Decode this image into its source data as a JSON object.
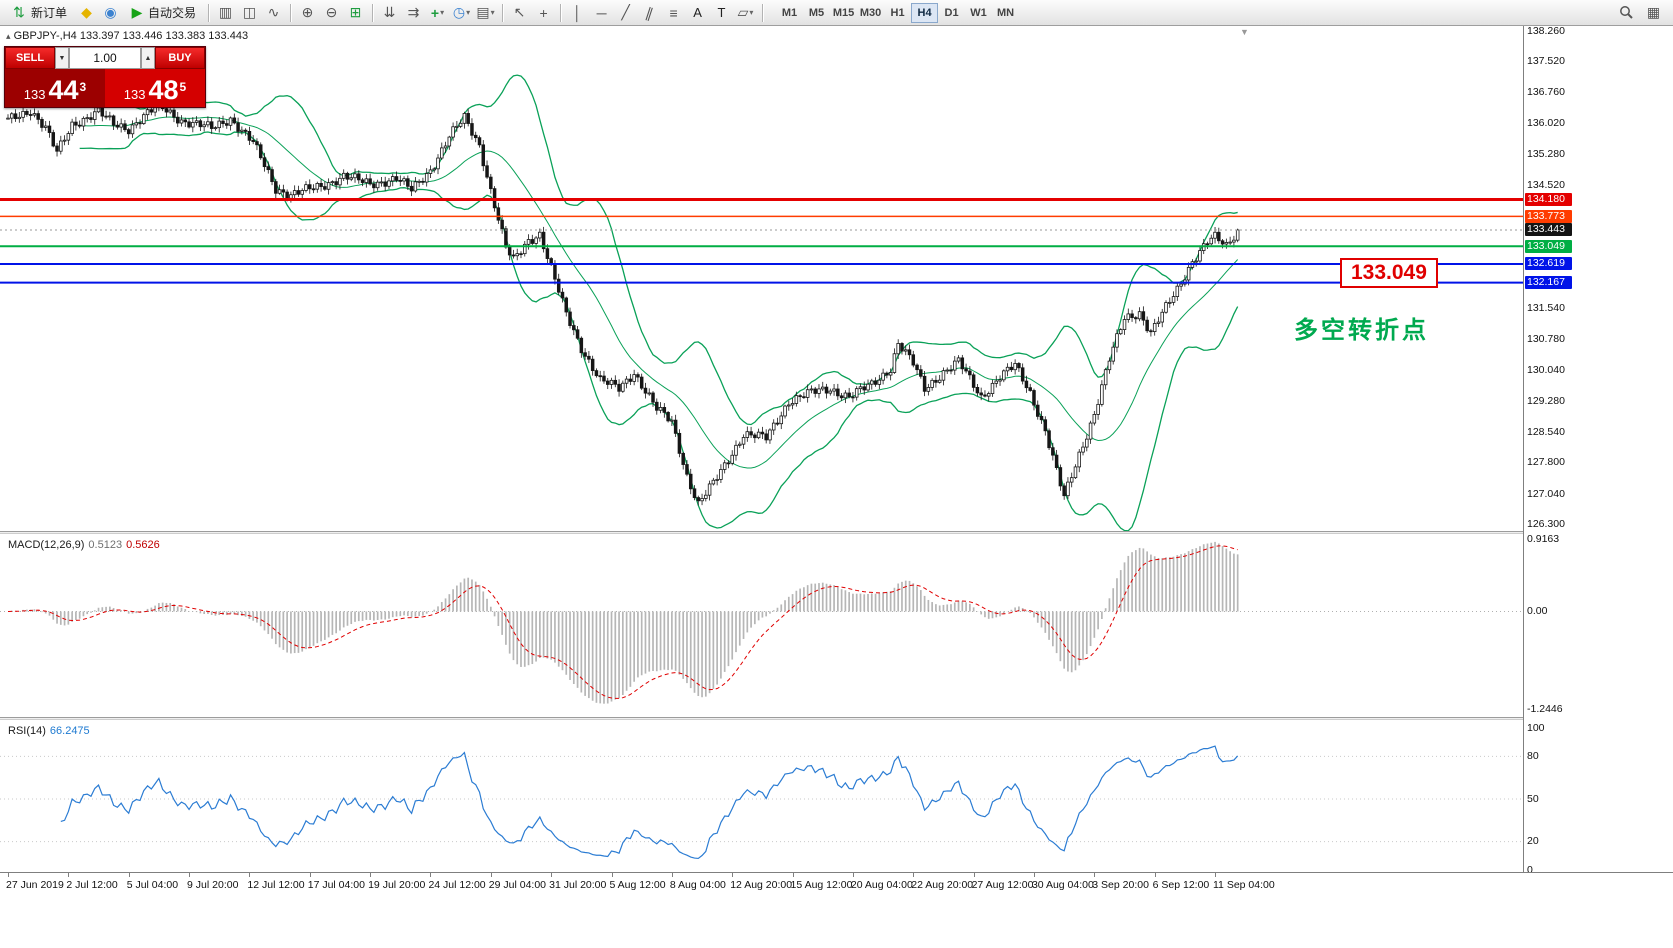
{
  "toolbar": {
    "new_order_label": "新订单",
    "auto_trading_label": "自动交易",
    "timeframes": [
      "M1",
      "M5",
      "M15",
      "M30",
      "H1",
      "H4",
      "D1",
      "W1",
      "MN"
    ],
    "active_timeframe": "H4"
  },
  "symbol_line": {
    "symbol": "GBPJPY-,H4",
    "ohlc": "133.397 133.446 133.383 133.443"
  },
  "trade_panel": {
    "sell_label": "SELL",
    "buy_label": "BUY",
    "volume": "1.00",
    "sell_small": "133",
    "sell_big": "44",
    "sell_sup": "3",
    "buy_small": "133",
    "buy_big": "48",
    "buy_sup": "5"
  },
  "annotations": {
    "price_label": "133.049",
    "turning_point": "多空转折点"
  },
  "price_axis": {
    "labels": [
      "138.260",
      "137.520",
      "136.760",
      "136.020",
      "135.280",
      "134.520",
      "131.540",
      "130.780",
      "130.040",
      "129.280",
      "128.540",
      "127.800",
      "127.040",
      "126.300"
    ],
    "highlighted": [
      {
        "text": "134.180",
        "bg": "#e40000"
      },
      {
        "text": "133.773",
        "bg": "#ff3c00"
      },
      {
        "text": "133.443",
        "bg": "#141414"
      },
      {
        "text": "133.049",
        "bg": "#00ae44"
      },
      {
        "text": "132.619",
        "bg": "#0013e8"
      },
      {
        "text": "132.167",
        "bg": "#0013e8"
      }
    ]
  },
  "macd": {
    "label": "MACD(12,26,9)",
    "main_value": "0.5123",
    "signal_value": "0.5626",
    "axis": [
      "0.9163",
      "0.00",
      "-1.2446"
    ]
  },
  "rsi": {
    "label": "RSI(14)",
    "value": "66.2475",
    "axis": [
      "100",
      "80",
      "50",
      "20",
      "0"
    ]
  },
  "time_axis": [
    "27 Jun 2019",
    "2 Jul 12:00",
    "5 Jul 04:00",
    "9 Jul 20:00",
    "12 Jul 12:00",
    "17 Jul 04:00",
    "19 Jul 20:00",
    "24 Jul 12:00",
    "29 Jul 04:00",
    "31 Jul 20:00",
    "5 Aug 12:00",
    "8 Aug 04:00",
    "12 Aug 20:00",
    "15 Aug 12:00",
    "20 Aug 04:00",
    "22 Aug 20:00",
    "27 Aug 12:00",
    "30 Aug 04:00",
    "3 Sep 20:00",
    "6 Sep 12:00",
    "11 Sep 04:00"
  ],
  "chart_data": {
    "type": "candlestick",
    "symbol": "GBPJPY-",
    "timeframe": "H4",
    "price_range": [
      126.3,
      138.26
    ],
    "bid": 133.443,
    "ohlc_current": {
      "open": 133.397,
      "high": 133.446,
      "low": 133.383,
      "close": 133.443
    },
    "n_candles": 327,
    "close_anchors": [
      [
        0,
        136.1
      ],
      [
        6,
        136.35
      ],
      [
        10,
        135.9
      ],
      [
        13,
        135.3
      ],
      [
        17,
        136.0
      ],
      [
        24,
        136.3
      ],
      [
        28,
        136.0
      ],
      [
        32,
        135.9
      ],
      [
        36,
        136.2
      ],
      [
        40,
        136.45
      ],
      [
        46,
        136.1
      ],
      [
        54,
        135.9
      ],
      [
        59,
        136.15
      ],
      [
        65,
        135.55
      ],
      [
        71,
        134.45
      ],
      [
        75,
        134.3
      ],
      [
        83,
        134.5
      ],
      [
        89,
        134.75
      ],
      [
        96,
        134.55
      ],
      [
        103,
        134.7
      ],
      [
        107,
        134.4
      ],
      [
        112,
        134.9
      ],
      [
        117,
        135.7
      ],
      [
        121,
        136.15
      ],
      [
        125,
        135.5
      ],
      [
        128,
        134.4
      ],
      [
        132,
        133.0
      ],
      [
        134,
        132.7
      ],
      [
        138,
        133.2
      ],
      [
        141,
        133.35
      ],
      [
        144,
        132.5
      ],
      [
        148,
        131.4
      ],
      [
        152,
        130.6
      ],
      [
        157,
        129.8
      ],
      [
        162,
        129.6
      ],
      [
        166,
        130.0
      ],
      [
        172,
        129.1
      ],
      [
        176,
        128.8
      ],
      [
        180,
        127.5
      ],
      [
        183,
        126.8
      ],
      [
        187,
        127.3
      ],
      [
        191,
        127.9
      ],
      [
        195,
        128.5
      ],
      [
        201,
        128.4
      ],
      [
        207,
        129.3
      ],
      [
        213,
        129.5
      ],
      [
        218,
        129.6
      ],
      [
        223,
        129.4
      ],
      [
        229,
        129.7
      ],
      [
        234,
        130.1
      ],
      [
        236,
        130.7
      ],
      [
        240,
        130.2
      ],
      [
        243,
        129.6
      ],
      [
        248,
        130.0
      ],
      [
        252,
        130.25
      ],
      [
        258,
        129.4
      ],
      [
        263,
        129.9
      ],
      [
        267,
        130.15
      ],
      [
        271,
        129.5
      ],
      [
        275,
        128.6
      ],
      [
        278,
        127.6
      ],
      [
        280,
        126.95
      ],
      [
        284,
        128.0
      ],
      [
        288,
        129.0
      ],
      [
        292,
        130.3
      ],
      [
        296,
        131.3
      ],
      [
        300,
        131.45
      ],
      [
        303,
        130.95
      ],
      [
        306,
        131.4
      ],
      [
        310,
        132.0
      ],
      [
        314,
        132.7
      ],
      [
        318,
        133.15
      ],
      [
        320,
        133.25
      ],
      [
        323,
        133.05
      ],
      [
        326,
        133.44
      ]
    ],
    "levels": [
      {
        "price": 134.18,
        "color": "#e40000",
        "width": 3
      },
      {
        "price": 133.773,
        "color": "#ff3c00",
        "width": 1.5
      },
      {
        "price": 133.049,
        "color": "#00ae44",
        "width": 2
      },
      {
        "price": 132.619,
        "color": "#0013e8",
        "width": 2
      },
      {
        "price": 132.167,
        "color": "#0013e8",
        "width": 2
      }
    ],
    "indicators": {
      "bollinger": {
        "period": 20,
        "deviation": 2,
        "color": "#0aa158"
      },
      "macd": {
        "params": "12,26,9",
        "current_main": 0.5123,
        "current_signal": 0.5626,
        "range": [
          -1.2446,
          0.9163
        ]
      },
      "rsi": {
        "period": 14,
        "current": 66.2475,
        "range": [
          0,
          100
        ]
      }
    }
  }
}
